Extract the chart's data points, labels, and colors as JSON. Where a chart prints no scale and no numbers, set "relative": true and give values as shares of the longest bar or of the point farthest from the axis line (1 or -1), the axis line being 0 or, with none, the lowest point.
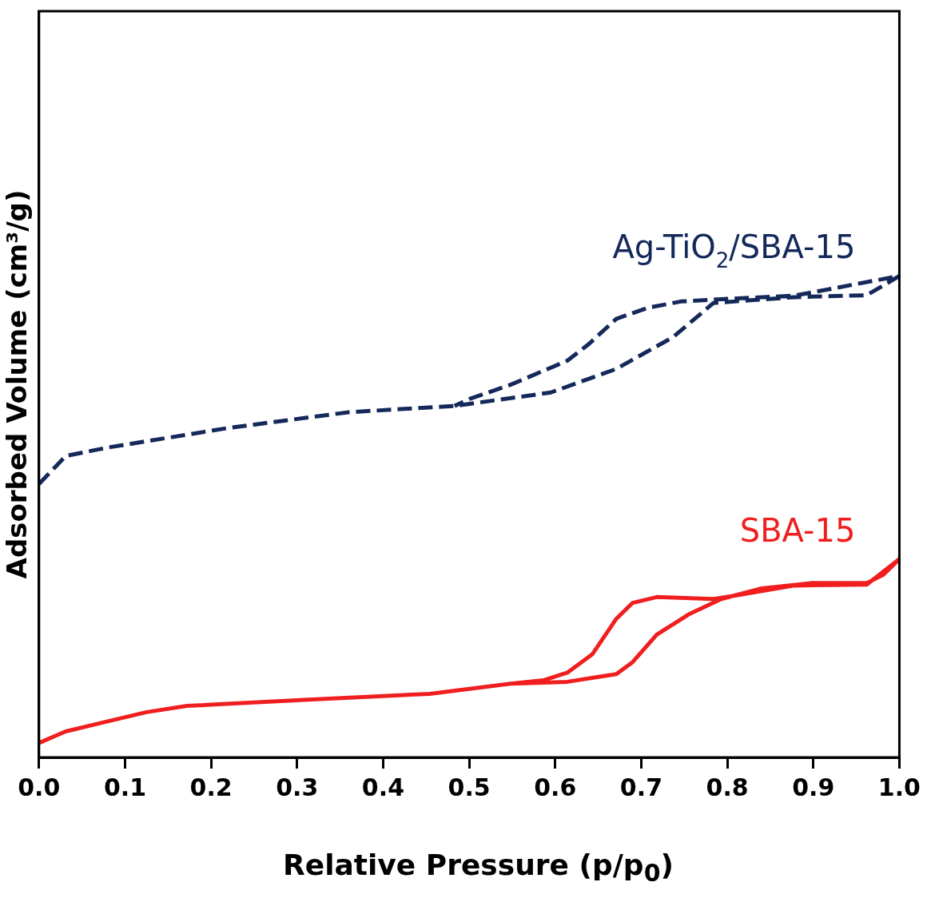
{
  "chart_data": {
    "type": "line",
    "relative": true,
    "xlabel": "Relative Pressure (p/p$_{0}$)",
    "ylabel": "Adsorbed Volume (cm³/g)",
    "xlim": [
      0,
      1
    ],
    "xticks": [
      {
        "value": 0,
        "label": "0.0"
      },
      {
        "value": 0.1,
        "label": "0.1"
      },
      {
        "value": 0.2,
        "label": "0.2"
      },
      {
        "value": 0.3,
        "label": "0.3"
      },
      {
        "value": 0.4,
        "label": "0.4"
      },
      {
        "value": 0.5,
        "label": "0.5"
      },
      {
        "value": 0.6,
        "label": "0.6"
      },
      {
        "value": 0.7,
        "label": "0.7"
      },
      {
        "value": 0.8,
        "label": "0.8"
      },
      {
        "value": 0.9,
        "label": "0.9"
      },
      {
        "value": 1,
        "label": "1.0"
      }
    ],
    "grid": false,
    "legend": false,
    "marker": "none",
    "series": [
      {
        "name": "Ag-TiO$_{2}$/SBA-15",
        "color": "#14285a",
        "line_style": "dashed",
        "x": [
          0,
          0.031,
          0.078,
          0.219,
          0.36,
          0.483,
          0.595,
          0.671,
          0.737,
          0.784,
          0.878,
          0.962,
          1,
          0.878,
          0.784,
          0.746,
          0.708,
          0.671,
          0.638,
          0.614,
          0.548,
          0.501,
          0.483
        ],
        "values": [
          0.568,
          0.626,
          0.643,
          0.684,
          0.717,
          0.73,
          0.758,
          0.807,
          0.873,
          0.944,
          0.956,
          0.96,
          1,
          0.959,
          0.951,
          0.947,
          0.934,
          0.911,
          0.857,
          0.824,
          0.774,
          0.745,
          0.73
        ]
      },
      {
        "name": "SBA-15",
        "color": "#f01e1e",
        "line_style": "solid",
        "x": [
          0,
          0.031,
          0.078,
          0.125,
          0.172,
          0.313,
          0.454,
          0.548,
          0.614,
          0.671,
          0.69,
          0.718,
          0.755,
          0.793,
          0.84,
          0.897,
          0.962,
          0.981,
          1,
          0.962,
          0.878,
          0.802,
          0.784,
          0.718,
          0.69,
          0.671,
          0.643,
          0.614,
          0.586,
          0.548
        ],
        "values": [
          0.03,
          0.054,
          0.074,
          0.094,
          0.107,
          0.12,
          0.132,
          0.153,
          0.157,
          0.173,
          0.198,
          0.255,
          0.297,
          0.329,
          0.351,
          0.362,
          0.362,
          0.379,
          0.412,
          0.359,
          0.357,
          0.334,
          0.329,
          0.333,
          0.321,
          0.288,
          0.214,
          0.176,
          0.16,
          0.153
        ]
      }
    ]
  }
}
